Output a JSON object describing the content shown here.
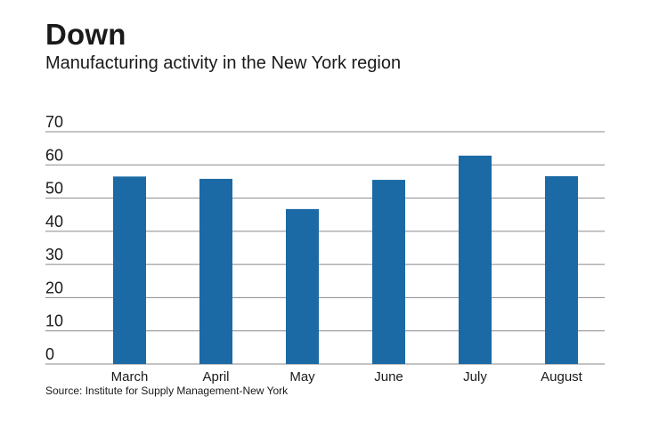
{
  "title": "Down",
  "subtitle": "Manufacturing activity in the New York region",
  "source": "Source: Institute for Supply Management-New York",
  "colors": {
    "bar": "#1b6aa5",
    "grid": "#8a8a8a"
  },
  "chart_data": {
    "type": "bar",
    "title": "Down",
    "subtitle": "Manufacturing activity in the New York region",
    "categories": [
      "March",
      "April",
      "May",
      "June",
      "July",
      "August"
    ],
    "values": [
      56.5,
      55.8,
      46.7,
      55.5,
      62.8,
      56.6
    ],
    "ylim": [
      0,
      70
    ],
    "yticks": [
      0,
      10,
      20,
      30,
      40,
      50,
      60,
      70
    ],
    "grid": true,
    "legend": "none"
  }
}
